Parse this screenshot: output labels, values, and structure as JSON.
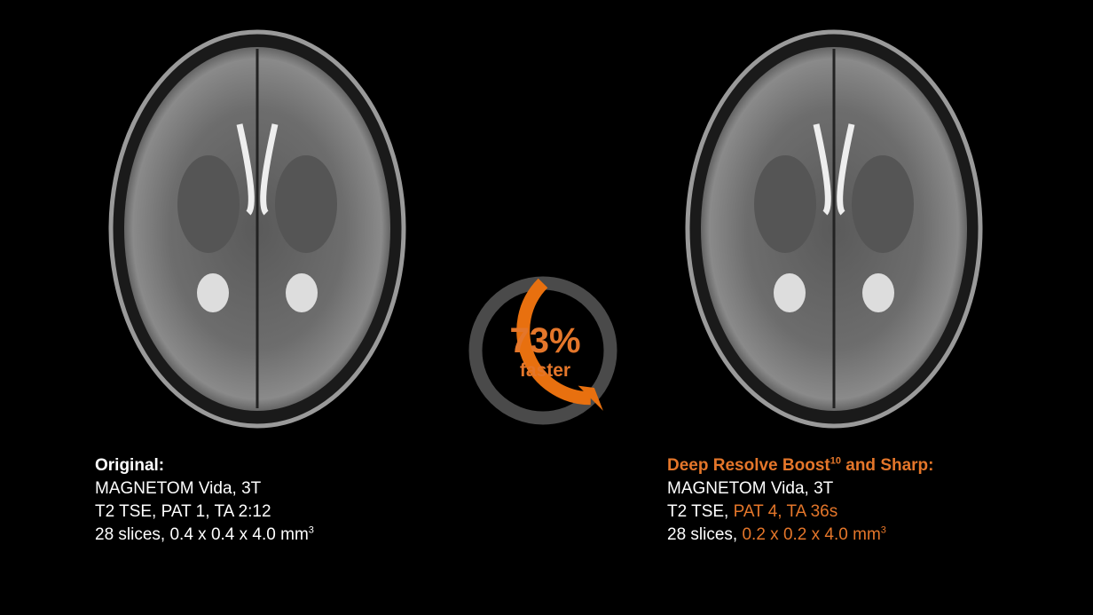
{
  "left_panel": {
    "title": "Original:",
    "line1": "MAGNETOM Vida, 3T",
    "line2": "T2 TSE, PAT 1, TA 2:12",
    "line3_prefix": "28 slices, 0.4 x 0.4 x 4.0 mm",
    "line3_sup": "3"
  },
  "right_panel": {
    "title_prefix": "Deep Resolve Boost",
    "title_sup": "10",
    "title_suffix": " and Sharp:",
    "line1": "MAGNETOM Vida, 3T",
    "line2_prefix": "T2 TSE, ",
    "line2_highlight": "PAT 4, TA 36s",
    "line3_prefix": "28 slices, ",
    "line3_highlight": "0.2 x 0.2 x 4.0 mm",
    "line3_sup": "3"
  },
  "speedup": {
    "value_label": "73%",
    "caption": "faster",
    "fraction": 0.73
  },
  "colors": {
    "accent": "#e4762a",
    "ring_track": "#4a4a4a",
    "background": "#000000"
  }
}
